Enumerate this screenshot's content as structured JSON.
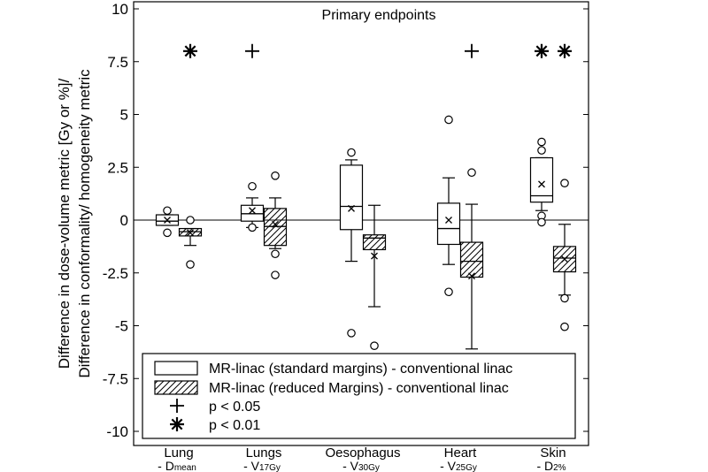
{
  "chart_data": {
    "type": "box",
    "title": "Primary endpoints",
    "ylabel": "Difference in dose-volume metric [Gy or %]/",
    "ylabel2": "Difference in conformality/ homogeneity metric",
    "ylim": [
      -10,
      10
    ],
    "yticks": [
      "10",
      "7.5",
      "5",
      "2.5",
      "0",
      "-2.5",
      "-5",
      "-7.5",
      "-10"
    ],
    "categories": [
      {
        "name": "Lung",
        "sub": "- D",
        "subsmall": "mean"
      },
      {
        "name": "Lungs",
        "sub": "- V",
        "subsmall": "17Gy"
      },
      {
        "name": "Oesophagus",
        "sub": "- V",
        "subsmall": "30Gy"
      },
      {
        "name": "Heart",
        "sub": "- V",
        "subsmall": "25Gy"
      },
      {
        "name": "Skin",
        "sub": "- D",
        "subsmall": "2%"
      }
    ],
    "series": [
      {
        "name": "MR-linac (standard margins) - conventional linac",
        "pattern": "open",
        "boxes": [
          {
            "wlo": -0.25,
            "q1": -0.25,
            "median": -0.05,
            "q3": 0.25,
            "whi": 0.25,
            "mean": 0.0,
            "outliers": [
              0.45,
              -0.6
            ]
          },
          {
            "wlo": -0.35,
            "q1": -0.05,
            "median": 0.3,
            "q3": 0.7,
            "whi": 1.05,
            "mean": 0.45,
            "outliers": [
              1.6,
              -0.35
            ]
          },
          {
            "wlo": -1.95,
            "q1": -0.45,
            "median": 0.65,
            "q3": 2.6,
            "whi": 2.85,
            "mean": 0.55,
            "outliers": [
              3.2,
              -5.35
            ]
          },
          {
            "wlo": -2.1,
            "q1": -1.15,
            "median": -0.4,
            "q3": 0.8,
            "whi": 2.0,
            "mean": 0.0,
            "outliers": [
              4.75,
              -3.4
            ]
          },
          {
            "wlo": 0.45,
            "q1": 0.85,
            "median": 1.15,
            "q3": 2.95,
            "whi": 2.95,
            "mean": 1.7,
            "outliers": [
              3.7,
              3.3,
              0.2,
              -0.1
            ]
          }
        ]
      },
      {
        "name": "MR-linac (reduced Margins) - conventional linac",
        "pattern": "hatched",
        "boxes": [
          {
            "wlo": -1.2,
            "q1": -0.75,
            "median": -0.55,
            "q3": -0.4,
            "whi": -0.4,
            "mean": -0.6,
            "outliers": [
              0.0,
              -2.1
            ]
          },
          {
            "wlo": -1.35,
            "q1": -1.2,
            "median": -0.3,
            "q3": 0.55,
            "whi": 1.05,
            "mean": -0.2,
            "outliers": [
              2.1,
              -1.6,
              -2.6
            ]
          },
          {
            "wlo": -4.1,
            "q1": -1.4,
            "median": -0.85,
            "q3": -0.7,
            "whi": 0.7,
            "mean": -1.7,
            "outliers": [
              -5.95
            ]
          },
          {
            "wlo": -6.1,
            "q1": -2.7,
            "median": -1.95,
            "q3": -1.05,
            "whi": 0.75,
            "mean": -2.65,
            "outliers": [
              2.25
            ]
          },
          {
            "wlo": -3.55,
            "q1": -2.45,
            "median": -1.8,
            "q3": -1.25,
            "whi": -0.2,
            "mean": -1.85,
            "outliers": [
              1.75,
              -3.7,
              -5.05
            ]
          }
        ]
      }
    ],
    "significance": [
      {
        "category": 0,
        "series": 1,
        "symbol": "asterisk",
        "y": 8
      },
      {
        "category": 1,
        "series": 0,
        "symbol": "plus",
        "y": 8
      },
      {
        "category": 3,
        "series": 1,
        "symbol": "plus",
        "y": 8
      },
      {
        "category": 4,
        "series": 0,
        "symbol": "asterisk",
        "y": 8
      },
      {
        "category": 4,
        "series": 1,
        "symbol": "asterisk",
        "y": 8
      }
    ],
    "legend": {
      "placement": "bottom",
      "entries": [
        {
          "label": "MR-linac (standard margins) - conventional linac",
          "kind": "box-open"
        },
        {
          "label": "MR-linac (reduced Margins) - conventional linac",
          "kind": "box-hatched"
        },
        {
          "label": "p < 0.05",
          "kind": "plus"
        },
        {
          "label": "p < 0.01",
          "kind": "asterisk"
        }
      ]
    }
  }
}
